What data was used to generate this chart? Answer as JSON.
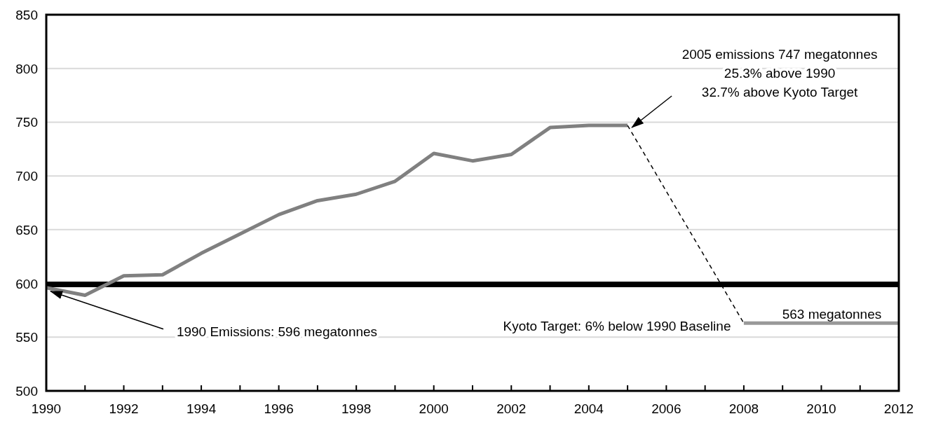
{
  "chart_data": {
    "type": "line",
    "series": [
      {
        "color": "#808080",
        "x": [
          1990,
          1991,
          1992,
          1993,
          1994,
          1995,
          1996,
          1997,
          1998,
          1999,
          2000,
          2001,
          2002,
          2003,
          2004,
          2005
        ],
        "values": [
          596,
          589,
          607,
          608,
          628,
          646,
          664,
          677,
          683,
          695,
          721,
          714,
          720,
          745,
          747,
          747
        ]
      },
      {
        "color": "#000000",
        "line_style": "dashed",
        "x": [
          2005,
          2008
        ],
        "values": [
          747,
          563
        ]
      },
      {
        "color": "#999999",
        "x": [
          2008,
          2012
        ],
        "values": [
          563,
          563
        ]
      }
    ],
    "xlim": [
      1990,
      2012
    ],
    "xticks": [
      1990,
      {
        "value": 1991,
        "label": null
      },
      1992,
      {
        "value": 1993,
        "label": null
      },
      1994,
      {
        "value": 1995,
        "label": null
      },
      1996,
      {
        "value": 1997,
        "label": null
      },
      1998,
      {
        "value": 1999,
        "label": null
      },
      2000,
      {
        "value": 2001,
        "label": null
      },
      2002,
      {
        "value": 2003,
        "label": null
      },
      2004,
      {
        "value": 2005,
        "label": null
      },
      2006,
      {
        "value": 2007,
        "label": null
      },
      2008,
      {
        "value": 2009,
        "label": null
      },
      2010,
      {
        "value": 2011,
        "label": null
      },
      2012
    ],
    "ylim": [
      500,
      850
    ],
    "yticks": [
      500,
      550,
      600,
      650,
      700,
      750,
      800,
      850
    ],
    "grid": "y",
    "ref_lines": [
      {
        "axis": "y",
        "value": 599,
        "color": "#000000"
      }
    ],
    "annotations": [
      {
        "text": "1990 Emissions: 596 megatonnes",
        "x": 1990,
        "y": 596
      },
      {
        "text": "2005 emissions 747 megatonnes\n25.3% above 1990\n32.7% above Kyoto Target",
        "x": 2005,
        "y": 747
      },
      "Kyoto Target: 6% below 1990 Baseline",
      {
        "text": "563 megatonnes",
        "x": 2010,
        "y": 563
      }
    ]
  }
}
